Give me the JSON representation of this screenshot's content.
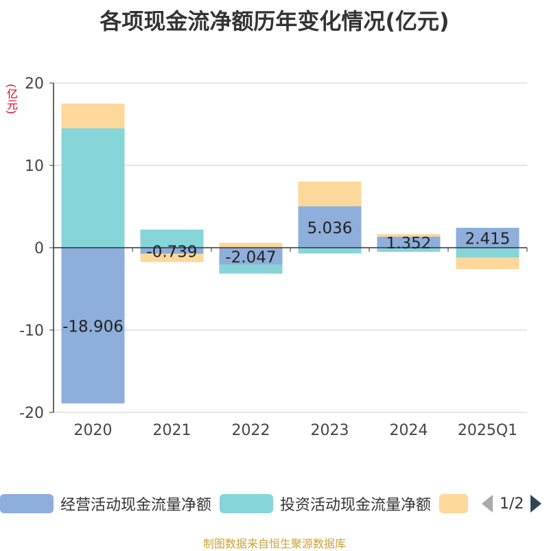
{
  "title": "各项现金流净额历年变化情况(亿元)",
  "unit": "(亿元)",
  "source": "制图数据来自恒生聚源数据库",
  "legend": {
    "items": [
      {
        "label": "经营活动现金流量净额",
        "color": "#8eaedb"
      },
      {
        "label": "投资活动现金流量净额",
        "color": "#86d5d9"
      },
      {
        "label": "",
        "color": "#fdd89a"
      }
    ],
    "page": "1/2"
  },
  "chart_data": {
    "type": "bar",
    "stacked": true,
    "categories": [
      "2020",
      "2021",
      "2022",
      "2023",
      "2024",
      "2025Q1"
    ],
    "ylim": [
      -20,
      20
    ],
    "yticks": [
      20,
      10,
      0,
      -10,
      -20
    ],
    "grid": true,
    "series": [
      {
        "name": "经营活动现金流量净额",
        "color": "#8eaedb",
        "values": [
          -18.906,
          -0.739,
          -2.047,
          5.036,
          1.352,
          2.415
        ]
      },
      {
        "name": "投资活动现金流量净额",
        "color": "#86d5d9",
        "values": [
          14.5,
          2.2,
          -1.1,
          -0.7,
          -0.5,
          -1.2
        ]
      },
      {
        "color": "#fdd89a",
        "values": [
          3.0,
          -1.0,
          0.6,
          3.0,
          0.3,
          -1.4
        ]
      }
    ],
    "data_labels": [
      "-18.906",
      "-0.739",
      "-2.047",
      "5.036",
      "1.352",
      "2.415"
    ]
  }
}
